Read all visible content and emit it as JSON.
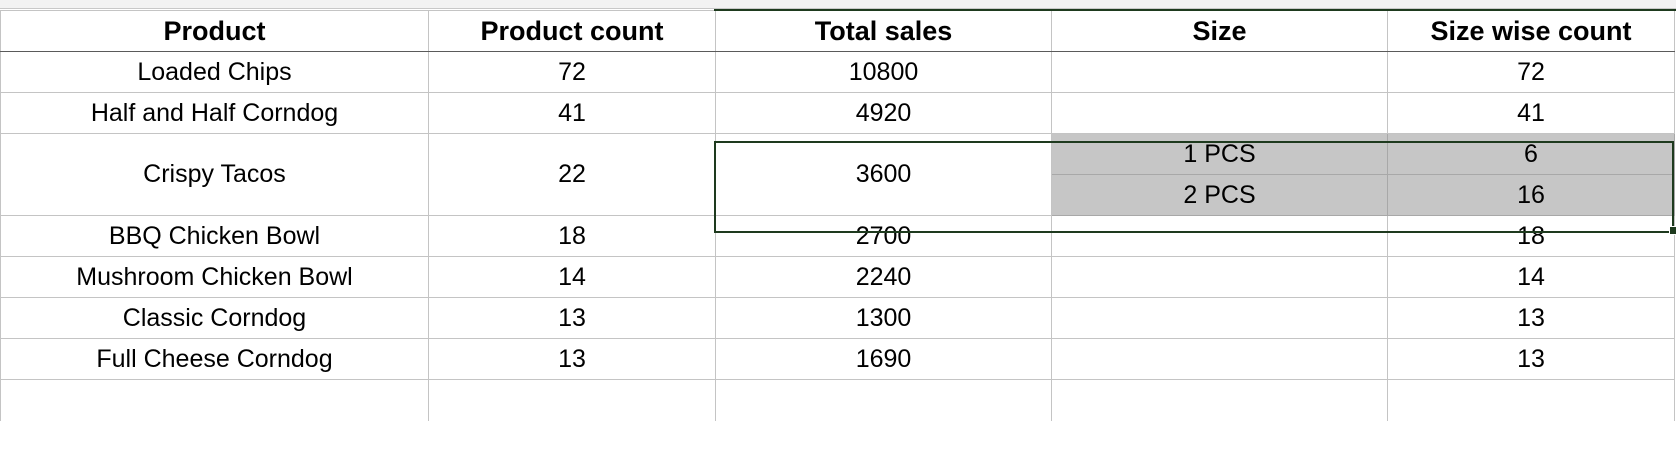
{
  "table": {
    "headers": [
      "Product",
      "Product count",
      "Total sales",
      "Size",
      "Size wise count"
    ],
    "rows": [
      {
        "product": "Loaded Chips",
        "product_count": "72",
        "total_sales": "10800",
        "size": "",
        "size_wise_count": "72"
      },
      {
        "product": "Half and Half Corndog",
        "product_count": "41",
        "total_sales": "4920",
        "size": "",
        "size_wise_count": "41"
      },
      {
        "product": "Crispy Tacos",
        "product_count": "22",
        "total_sales": "3600",
        "sub_rows": [
          {
            "size": "1 PCS",
            "size_wise_count": "6"
          },
          {
            "size": "2 PCS",
            "size_wise_count": "16"
          }
        ]
      },
      {
        "product": "BBQ Chicken Bowl",
        "product_count": "18",
        "total_sales": "2700",
        "size": "",
        "size_wise_count": "18"
      },
      {
        "product": "Mushroom Chicken Bowl",
        "product_count": "14",
        "total_sales": "2240",
        "size": "",
        "size_wise_count": "14"
      },
      {
        "product": "Classic Corndog",
        "product_count": "13",
        "total_sales": "1300",
        "size": "",
        "size_wise_count": "13"
      },
      {
        "product": "Full Cheese Corndog",
        "product_count": "13",
        "total_sales": "1690",
        "size": "",
        "size_wise_count": "13"
      }
    ]
  },
  "colors": {
    "selection_border": "#1e3a1e",
    "selected_fill": "#c6c6c6",
    "grid_line": "#c4c4c4"
  }
}
